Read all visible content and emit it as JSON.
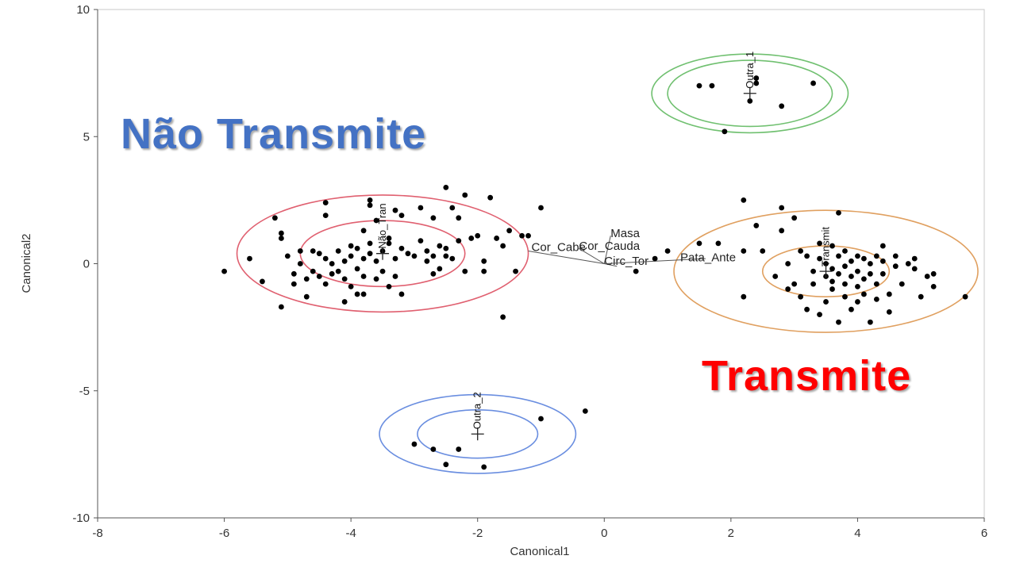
{
  "overlay": {
    "nao_transmite": "Não Transmite",
    "transmite": "Transmite",
    "nao_color": "#4472c4",
    "transmite_color": "#ff0000"
  },
  "chart_data": {
    "type": "scatter",
    "xlabel": "Canonical1",
    "ylabel": "Canonical2",
    "xlim": [
      -8,
      6
    ],
    "ylim": [
      -10,
      10
    ],
    "xticks": [
      -8,
      -6,
      -4,
      -2,
      0,
      2,
      4,
      6
    ],
    "yticks": [
      -10,
      -5,
      0,
      5,
      10
    ],
    "grid": false,
    "groups": [
      {
        "label": "Não_Tran",
        "center": [
          -3.5,
          0.4
        ],
        "color": "#e06070",
        "circles": [
          1.3,
          2.3
        ]
      },
      {
        "label": "Transmit",
        "center": [
          3.5,
          -0.3
        ],
        "color": "#e0a060",
        "circles": [
          1.0,
          2.4
        ]
      },
      {
        "label": "Outra_1",
        "center": [
          2.3,
          6.7
        ],
        "color": "#70c070",
        "circles": [
          1.3,
          1.55
        ]
      },
      {
        "label": "Outra_2",
        "center": [
          -2.0,
          -6.7
        ],
        "color": "#6a8ee0",
        "circles": [
          0.95,
          1.55
        ]
      }
    ],
    "biplot": {
      "origin": [
        0,
        0
      ],
      "rays": [
        {
          "label": "Masa",
          "end": [
            0.1,
            1.1
          ]
        },
        {
          "label": "Cor_Cabe",
          "end": [
            -1.2,
            0.5
          ]
        },
        {
          "label": "Cor_Cauda",
          "end": [
            -0.4,
            0.6
          ]
        },
        {
          "label": "Circ_Tor",
          "end": [
            0.2,
            -0.1
          ]
        },
        {
          "label": "Pata_Ante",
          "end": [
            1.6,
            0.2
          ]
        }
      ],
      "label_positions": [
        [
          0.1,
          1.05
        ],
        [
          -1.15,
          0.5
        ],
        [
          -0.4,
          0.55
        ],
        [
          0.0,
          -0.05
        ],
        [
          1.2,
          0.1
        ]
      ]
    },
    "series": [
      {
        "group": "Não_Tran",
        "points": [
          [
            -6.0,
            -0.3
          ],
          [
            -5.6,
            0.2
          ],
          [
            -5.4,
            -0.7
          ],
          [
            -5.2,
            1.8
          ],
          [
            -5.1,
            1.0
          ],
          [
            -5.1,
            1.2
          ],
          [
            -5.1,
            -1.7
          ],
          [
            -5.0,
            0.3
          ],
          [
            -4.9,
            -0.4
          ],
          [
            -4.9,
            -0.8
          ],
          [
            -4.8,
            0.5
          ],
          [
            -4.8,
            0.0
          ],
          [
            -4.7,
            -1.3
          ],
          [
            -4.7,
            -0.6
          ],
          [
            -4.6,
            0.5
          ],
          [
            -4.6,
            -0.3
          ],
          [
            -4.5,
            0.4
          ],
          [
            -4.5,
            -0.5
          ],
          [
            -4.4,
            2.4
          ],
          [
            -4.4,
            0.2
          ],
          [
            -4.4,
            -0.8
          ],
          [
            -4.4,
            1.9
          ],
          [
            -4.3,
            0.0
          ],
          [
            -4.3,
            -0.4
          ],
          [
            -4.2,
            0.5
          ],
          [
            -4.2,
            -0.3
          ],
          [
            -4.1,
            0.1
          ],
          [
            -4.1,
            -0.6
          ],
          [
            -4.1,
            -1.5
          ],
          [
            -4.0,
            0.7
          ],
          [
            -4.0,
            0.3
          ],
          [
            -4.0,
            -0.9
          ],
          [
            -3.9,
            0.6
          ],
          [
            -3.9,
            -0.2
          ],
          [
            -3.9,
            -1.2
          ],
          [
            -3.8,
            1.3
          ],
          [
            -3.8,
            0.2
          ],
          [
            -3.8,
            -0.5
          ],
          [
            -3.8,
            -1.2
          ],
          [
            -3.7,
            2.5
          ],
          [
            -3.7,
            2.3
          ],
          [
            -3.7,
            0.8
          ],
          [
            -3.7,
            0.4
          ],
          [
            -3.6,
            0.1
          ],
          [
            -3.6,
            -0.6
          ],
          [
            -3.6,
            1.7
          ],
          [
            -3.5,
            0.5
          ],
          [
            -3.5,
            -0.3
          ],
          [
            -3.4,
            0.8
          ],
          [
            -3.4,
            1.0
          ],
          [
            -3.4,
            -0.9
          ],
          [
            -3.3,
            2.1
          ],
          [
            -3.3,
            0.2
          ],
          [
            -3.3,
            -0.5
          ],
          [
            -3.2,
            1.9
          ],
          [
            -3.2,
            0.6
          ],
          [
            -3.2,
            -1.2
          ],
          [
            -3.1,
            0.4
          ],
          [
            -3.0,
            0.3
          ],
          [
            -2.9,
            2.2
          ],
          [
            -2.9,
            0.9
          ],
          [
            -2.8,
            0.5
          ],
          [
            -2.8,
            0.1
          ],
          [
            -2.7,
            0.3
          ],
          [
            -2.7,
            -0.4
          ],
          [
            -2.7,
            1.8
          ],
          [
            -2.6,
            0.7
          ],
          [
            -2.6,
            -0.2
          ],
          [
            -2.5,
            0.6
          ],
          [
            -2.5,
            3.0
          ],
          [
            -2.5,
            0.3
          ],
          [
            -2.4,
            2.2
          ],
          [
            -2.4,
            0.2
          ],
          [
            -2.3,
            1.8
          ],
          [
            -2.3,
            0.9
          ],
          [
            -2.2,
            2.7
          ],
          [
            -2.2,
            -0.3
          ],
          [
            -2.1,
            1.0
          ],
          [
            -2.0,
            1.1
          ],
          [
            -1.9,
            0.1
          ],
          [
            -1.9,
            -0.3
          ],
          [
            -1.8,
            2.6
          ],
          [
            -1.7,
            1.0
          ],
          [
            -1.6,
            0.7
          ],
          [
            -1.5,
            1.3
          ],
          [
            -1.4,
            -0.3
          ],
          [
            -1.3,
            1.1
          ],
          [
            -1.6,
            -2.1
          ],
          [
            -1.2,
            1.1
          ],
          [
            -1.0,
            2.2
          ]
        ]
      },
      {
        "group": "Transmit",
        "points": [
          [
            2.2,
            2.5
          ],
          [
            2.2,
            -1.3
          ],
          [
            2.4,
            1.5
          ],
          [
            2.5,
            0.5
          ],
          [
            2.7,
            -0.5
          ],
          [
            2.8,
            2.2
          ],
          [
            2.8,
            1.3
          ],
          [
            2.9,
            -1.0
          ],
          [
            2.9,
            0.0
          ],
          [
            3.0,
            1.8
          ],
          [
            3.0,
            -0.8
          ],
          [
            3.1,
            0.5
          ],
          [
            3.1,
            -1.3
          ],
          [
            3.2,
            0.3
          ],
          [
            3.2,
            -1.8
          ],
          [
            3.3,
            -0.3
          ],
          [
            3.3,
            -0.8
          ],
          [
            3.4,
            0.8
          ],
          [
            3.4,
            0.2
          ],
          [
            3.4,
            -2.0
          ],
          [
            3.5,
            -0.5
          ],
          [
            3.5,
            0.0
          ],
          [
            3.5,
            -1.5
          ],
          [
            3.6,
            0.7
          ],
          [
            3.6,
            -0.2
          ],
          [
            3.6,
            -0.7
          ],
          [
            3.6,
            -1.0
          ],
          [
            3.7,
            2.0
          ],
          [
            3.7,
            0.3
          ],
          [
            3.7,
            -0.4
          ],
          [
            3.7,
            -2.3
          ],
          [
            3.8,
            0.5
          ],
          [
            3.8,
            -0.1
          ],
          [
            3.8,
            -0.8
          ],
          [
            3.8,
            -1.3
          ],
          [
            3.9,
            0.1
          ],
          [
            3.9,
            -0.5
          ],
          [
            3.9,
            -1.8
          ],
          [
            4.0,
            0.3
          ],
          [
            4.0,
            -0.3
          ],
          [
            4.0,
            -0.9
          ],
          [
            4.0,
            -1.5
          ],
          [
            4.1,
            0.2
          ],
          [
            4.1,
            -0.6
          ],
          [
            4.1,
            -1.2
          ],
          [
            4.2,
            0.0
          ],
          [
            4.2,
            -0.4
          ],
          [
            4.2,
            -2.3
          ],
          [
            4.3,
            0.3
          ],
          [
            4.3,
            -0.8
          ],
          [
            4.3,
            -1.4
          ],
          [
            4.4,
            0.1
          ],
          [
            4.4,
            0.7
          ],
          [
            4.4,
            -0.4
          ],
          [
            4.5,
            -1.2
          ],
          [
            4.5,
            -1.9
          ],
          [
            4.6,
            0.3
          ],
          [
            4.6,
            -0.1
          ],
          [
            4.7,
            -0.8
          ],
          [
            4.8,
            0.0
          ],
          [
            4.9,
            0.2
          ],
          [
            4.9,
            -0.2
          ],
          [
            5.0,
            -1.3
          ],
          [
            5.1,
            -0.5
          ],
          [
            5.2,
            -0.9
          ],
          [
            5.2,
            -0.4
          ],
          [
            5.7,
            -1.3
          ],
          [
            1.5,
            0.8
          ],
          [
            1.8,
            0.8
          ],
          [
            2.2,
            0.5
          ]
        ]
      },
      {
        "group": "Outra_1",
        "points": [
          [
            1.5,
            7.0
          ],
          [
            1.7,
            7.0
          ],
          [
            1.9,
            5.2
          ],
          [
            2.3,
            6.4
          ],
          [
            2.4,
            7.1
          ],
          [
            2.4,
            7.3
          ],
          [
            2.8,
            6.2
          ],
          [
            3.3,
            7.1
          ]
        ]
      },
      {
        "group": "Outra_2",
        "points": [
          [
            -3.0,
            -7.1
          ],
          [
            -2.7,
            -7.3
          ],
          [
            -2.5,
            -7.9
          ],
          [
            -2.3,
            -7.3
          ],
          [
            -1.9,
            -8.0
          ],
          [
            -1.0,
            -6.1
          ],
          [
            -0.3,
            -5.8
          ]
        ]
      },
      {
        "group": "other",
        "points": [
          [
            0.5,
            -0.3
          ],
          [
            0.8,
            0.2
          ],
          [
            1.0,
            0.5
          ]
        ]
      }
    ]
  }
}
